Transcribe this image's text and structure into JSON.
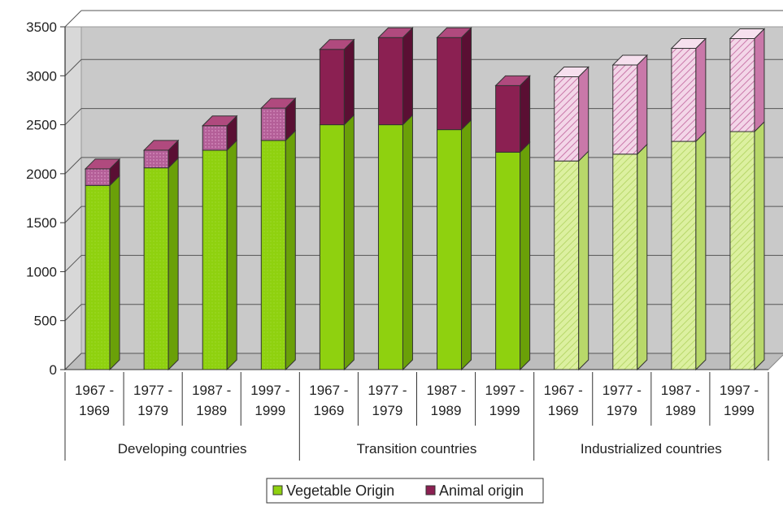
{
  "chart_data": {
    "type": "bar",
    "stacked": true,
    "view": "3d",
    "title": "",
    "xlabel": "",
    "ylabel": "",
    "ylim": [
      0,
      3500
    ],
    "yticks": [
      0,
      500,
      1000,
      1500,
      2000,
      2500,
      3000,
      3500
    ],
    "grid": true,
    "legend_position": "bottom",
    "groups": [
      {
        "label": "Developing countries",
        "categories": [
          "1967 -\n1969",
          "1977 -\n1979",
          "1987 -\n1989",
          "1997 -\n1999"
        ]
      },
      {
        "label": "Transition countries",
        "categories": [
          "1967 -\n1969",
          "1977 -\n1979",
          "1987 -\n1989",
          "1997 -\n1999"
        ]
      },
      {
        "label": "Industrialized countries",
        "categories": [
          "1967 -\n1969",
          "1977 -\n1979",
          "1987 -\n1989",
          "1997 -\n1999"
        ]
      }
    ],
    "series": [
      {
        "name": "Vegetable Origin",
        "color": "#8fd10f",
        "values": [
          1880,
          2060,
          2240,
          2340,
          2500,
          2500,
          2450,
          2220,
          2130,
          2200,
          2330,
          2430
        ]
      },
      {
        "name": "Animal origin",
        "color": "#8b2052",
        "values": [
          170,
          180,
          250,
          330,
          770,
          890,
          940,
          680,
          860,
          910,
          950,
          950
        ]
      }
    ],
    "group_styles": [
      {
        "vegetable": "#8fd10f",
        "animal": "#8b2052"
      },
      {
        "vegetable": "#8fd10f",
        "animal": "#8b2052"
      },
      {
        "vegetable": "#dcf0a0",
        "animal": "#eab8d6"
      }
    ]
  }
}
